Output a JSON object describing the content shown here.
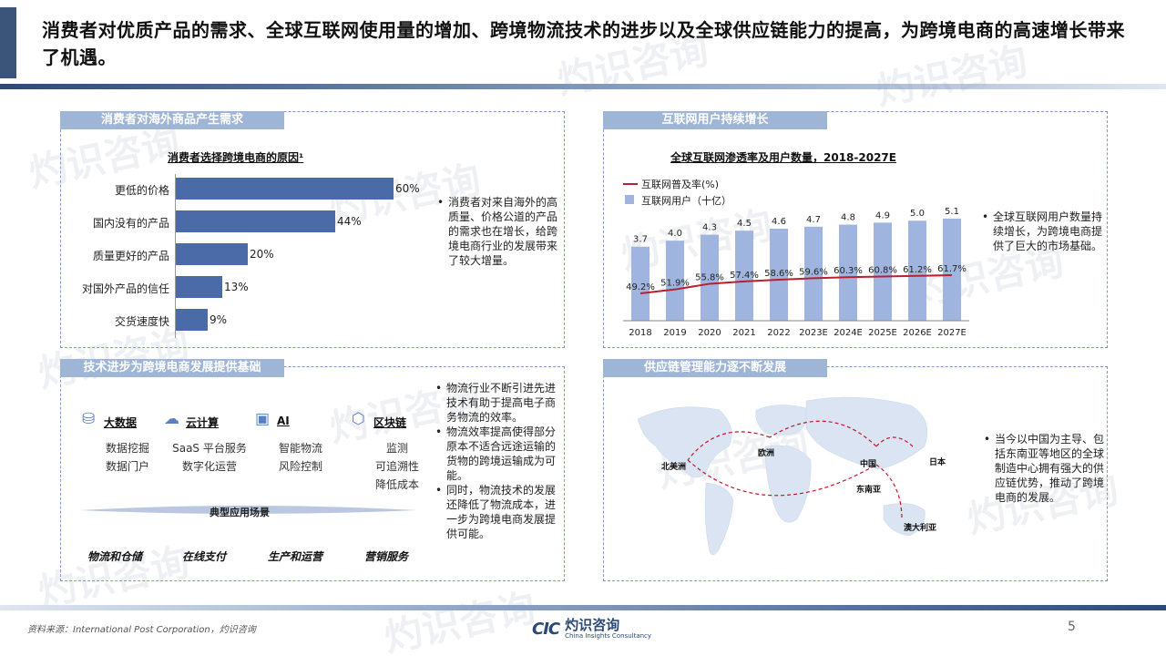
{
  "header": {
    "title": "消费者对优质产品的需求、全球互联网使用量的增加、跨境物流技术的进步以及全球供应链能力的提高，为跨境电商的高速增长带来了机遇。"
  },
  "watermark": {
    "cn": "灼识咨询",
    "en": "China Insights Consultancy",
    "abbr": "CIC"
  },
  "panels": {
    "demand": {
      "heading": "消费者对海外商品产生需求",
      "chart_title": "消费者选择跨境电商的原因¹",
      "bullets": [
        "消费者对来自海外的高质量、价格公道的产品的需求也在增长，给跨境电商行业的发展带来了较大增量。"
      ]
    },
    "internet": {
      "heading": "互联网用户持续增长",
      "chart_title": "全球互联网渗透率及用户数量，2018-2027E",
      "legend_line": "互联网普及率(%)",
      "legend_bar": "互联网用户（十亿）",
      "bullets": [
        "全球互联网用户数量持续增长，为跨境电商提供了巨大的市场基础。"
      ]
    },
    "tech": {
      "heading": "技术进步为跨境电商发展提供基础",
      "items": [
        {
          "icon": "database-icon",
          "label": "大数据",
          "subs": [
            "数据挖掘",
            "数据门户"
          ]
        },
        {
          "icon": "cloud-icon",
          "label": "云计算",
          "subs": [
            "SaaS 平台服务",
            "数字化运营"
          ]
        },
        {
          "icon": "chip-icon",
          "label": "AI",
          "subs": [
            "智能物流",
            "风险控制"
          ]
        },
        {
          "icon": "blockchain-icon",
          "label": "区块链",
          "subs": [
            "监测",
            "可追溯性",
            "降低成本"
          ]
        }
      ],
      "scenarios_title": "典型应用场景",
      "scenarios": [
        "物流和仓储",
        "在线支付",
        "生产和运营",
        "营销服务"
      ],
      "bullets": [
        "物流行业不断引进先进技术有助于提高电子商务物流的效率。",
        "物流效率提高使得部分原本不适合远途运输的货物的跨境运输成为可能。",
        "同时，物流技术的发展还降低了物流成本，进一步为跨境电商发展提供可能。"
      ]
    },
    "supply": {
      "heading": "供应链管理能力逐不断发展",
      "map_labels": {
        "north_america": "北美洲",
        "europe": "欧洲",
        "china": "中国",
        "japan": "日本",
        "southeast_asia": "东南亚",
        "australia": "澳大利亚"
      },
      "bullets": [
        "当今以中国为主导、包括东南亚等地区的全球制造中心拥有强大的供应链优势，推动了跨境电商的发展。"
      ]
    }
  },
  "chart_data": [
    {
      "type": "bar",
      "orientation": "horizontal",
      "title": "消费者选择跨境电商的原因¹",
      "categories": [
        "更低的价格",
        "国内没有的产品",
        "质量更好的产品",
        "对国外产品的信任",
        "交货速度快"
      ],
      "values": [
        60,
        44,
        20,
        13,
        9
      ],
      "value_labels": [
        "60%",
        "44%",
        "20%",
        "13%",
        "9%"
      ],
      "color": "#4a6aa8"
    },
    {
      "type": "bar",
      "title": "全球互联网渗透率及用户数量，2018-2027E",
      "categories": [
        "2018",
        "2019",
        "2020",
        "2021",
        "2022",
        "2023E",
        "2024E",
        "2025E",
        "2026E",
        "2027E"
      ],
      "series": [
        {
          "name": "互联网用户（十亿）",
          "type": "bar",
          "values": [
            3.7,
            4.0,
            4.3,
            4.5,
            4.6,
            4.7,
            4.8,
            4.9,
            5.0,
            5.1
          ],
          "labels": [
            "3.7",
            "4.0",
            "4.3",
            "4.5",
            "4.6",
            "4.7",
            "4.8",
            "4.9",
            "5.0",
            "5.1"
          ],
          "color": "#9fb5e0"
        },
        {
          "name": "互联网普及率(%)",
          "type": "line",
          "values": [
            49.2,
            51.9,
            55.8,
            57.4,
            58.6,
            59.6,
            60.3,
            60.8,
            61.2,
            61.7
          ],
          "labels": [
            "49.2%",
            "51.9%",
            "55.8%",
            "57.4%",
            "58.6%",
            "59.6%",
            "60.3%",
            "60.8%",
            "61.2%",
            "61.7%"
          ],
          "color": "#b8202f"
        }
      ],
      "legend": "top-left"
    }
  ],
  "footer": {
    "source": "资料来源：International Post Corporation，灼识咨询",
    "page": "5",
    "logo_abbr": "CIC",
    "logo_cn": "灼识咨询",
    "logo_en": "China Insights Consultancy"
  }
}
